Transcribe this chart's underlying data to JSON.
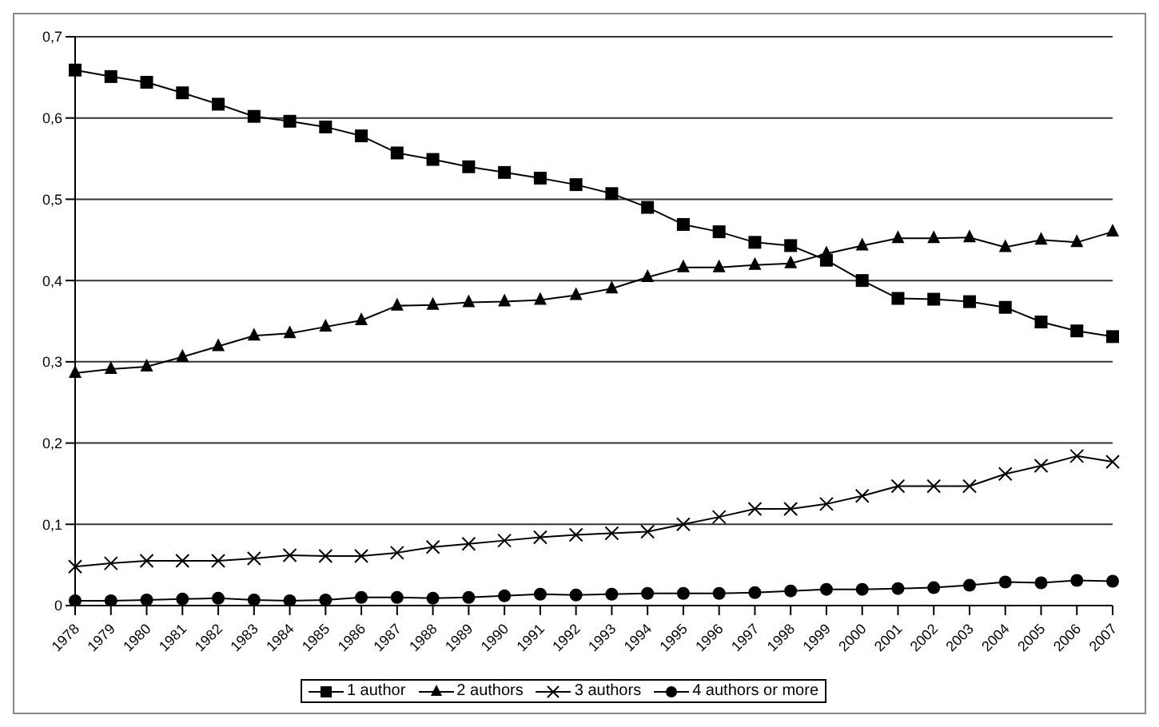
{
  "chart_data": {
    "type": "line",
    "categories": [
      "1978",
      "1979",
      "1980",
      "1981",
      "1982",
      "1983",
      "1984",
      "1985",
      "1986",
      "1987",
      "1988",
      "1989",
      "1990",
      "1991",
      "1992",
      "1993",
      "1994",
      "1995",
      "1996",
      "1997",
      "1998",
      "1999",
      "2000",
      "2001",
      "2002",
      "2003",
      "2004",
      "2005",
      "2006",
      "2007"
    ],
    "series": [
      {
        "name": "1 author",
        "color": "#000000",
        "marker": "square",
        "values": [
          0.659,
          0.651,
          0.644,
          0.631,
          0.617,
          0.602,
          0.596,
          0.589,
          0.578,
          0.557,
          0.549,
          0.54,
          0.533,
          0.526,
          0.518,
          0.507,
          0.49,
          0.469,
          0.46,
          0.447,
          0.443,
          0.425,
          0.4,
          0.378,
          0.377,
          0.374,
          0.367,
          0.349,
          0.338,
          0.331
        ]
      },
      {
        "name": "2 authors",
        "color": "#000000",
        "marker": "triangle",
        "values": [
          0.286,
          0.291,
          0.294,
          0.306,
          0.319,
          0.332,
          0.335,
          0.343,
          0.351,
          0.369,
          0.37,
          0.373,
          0.374,
          0.376,
          0.382,
          0.39,
          0.404,
          0.416,
          0.416,
          0.419,
          0.421,
          0.433,
          0.443,
          0.452,
          0.452,
          0.453,
          0.441,
          0.45,
          0.447,
          0.46
        ]
      },
      {
        "name": "3 authors",
        "color": "#000000",
        "marker": "cross",
        "values": [
          0.048,
          0.052,
          0.055,
          0.055,
          0.055,
          0.058,
          0.062,
          0.061,
          0.061,
          0.065,
          0.072,
          0.076,
          0.08,
          0.084,
          0.087,
          0.089,
          0.091,
          0.1,
          0.109,
          0.119,
          0.119,
          0.125,
          0.135,
          0.147,
          0.147,
          0.147,
          0.162,
          0.172,
          0.184,
          0.177
        ]
      },
      {
        "name": "4 authors or more",
        "color": "#000000",
        "marker": "circle",
        "values": [
          0.006,
          0.006,
          0.007,
          0.008,
          0.009,
          0.007,
          0.006,
          0.007,
          0.01,
          0.01,
          0.009,
          0.01,
          0.012,
          0.014,
          0.013,
          0.014,
          0.015,
          0.015,
          0.015,
          0.016,
          0.018,
          0.02,
          0.02,
          0.021,
          0.022,
          0.025,
          0.029,
          0.028,
          0.031,
          0.03
        ]
      }
    ],
    "ylim": [
      0,
      0.7
    ],
    "yticks": [
      {
        "value": 0,
        "label": "0"
      },
      {
        "value": 0.1,
        "label": "0,1"
      },
      {
        "value": 0.2,
        "label": "0,2"
      },
      {
        "value": 0.3,
        "label": "0,3"
      },
      {
        "value": 0.4,
        "label": "0,4"
      },
      {
        "value": 0.5,
        "label": "0,5"
      },
      {
        "value": 0.6,
        "label": "0,6"
      },
      {
        "value": 0.7,
        "label": "0,7"
      }
    ],
    "grid": "y",
    "legend": "bottom"
  }
}
